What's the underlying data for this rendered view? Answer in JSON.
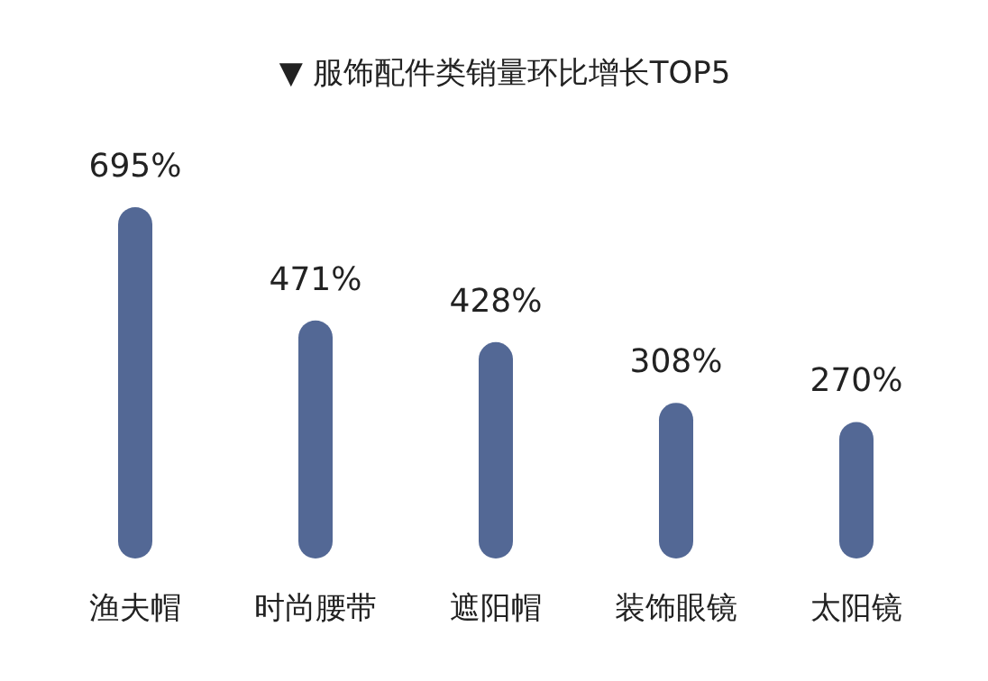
{
  "chart_data": {
    "type": "bar",
    "title": "▼ 服饰配件类销量环比增长TOP5",
    "categories": [
      "渔夫帽",
      "时尚腰带",
      "遮阳帽",
      "装饰眼镜",
      "太阳镜"
    ],
    "values": [
      695,
      471,
      428,
      308,
      270
    ],
    "value_labels": [
      "695%",
      "471%",
      "428%",
      "308%",
      "270%"
    ],
    "color": "#536895"
  }
}
